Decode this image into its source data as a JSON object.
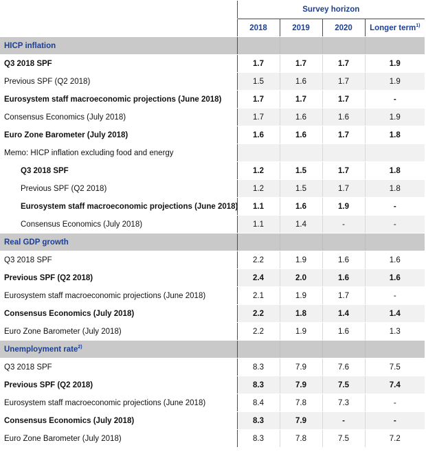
{
  "table": {
    "group_header": "Survey horizon",
    "columns": [
      {
        "label": "2018"
      },
      {
        "label": "2019"
      },
      {
        "label": "2020"
      },
      {
        "label": "Longer term",
        "note": "1)"
      }
    ],
    "sections": [
      {
        "title": "HICP inflation",
        "rows": [
          {
            "label": "Q3 2018 SPF",
            "values": [
              "1.7",
              "1.7",
              "1.7",
              "1.9"
            ],
            "bold": true
          },
          {
            "label": "Previous SPF (Q2 2018)",
            "values": [
              "1.5",
              "1.6",
              "1.7",
              "1.9"
            ]
          },
          {
            "label": "Eurosystem staff macroeconomic projections (June 2018)",
            "values": [
              "1.7",
              "1.7",
              "1.7",
              "-"
            ],
            "bold": true
          },
          {
            "label": "Consensus Economics (July 2018)",
            "values": [
              "1.7",
              "1.6",
              "1.6",
              "1.9"
            ]
          },
          {
            "label": "Euro Zone Barometer (July 2018)",
            "values": [
              "1.6",
              "1.6",
              "1.7",
              "1.8"
            ],
            "bold": true
          },
          {
            "label": "Memo: HICP inflation excluding food and energy",
            "values": []
          },
          {
            "label": "Q3 2018 SPF",
            "values": [
              "1.2",
              "1.5",
              "1.7",
              "1.8"
            ],
            "bold": true,
            "indent": true
          },
          {
            "label": "Previous SPF (Q2 2018)",
            "values": [
              "1.2",
              "1.5",
              "1.7",
              "1.8"
            ],
            "indent": true
          },
          {
            "label": "Eurosystem staff macroeconomic projections (June 2018)",
            "values": [
              "1.1",
              "1.6",
              "1.9",
              "-"
            ],
            "bold": true,
            "indent": true
          },
          {
            "label": "Consensus Economics (July 2018)",
            "values": [
              "1.1",
              "1.4",
              "-",
              "-"
            ],
            "indent": true
          }
        ]
      },
      {
        "title": "Real GDP growth",
        "rows": [
          {
            "label": "Q3 2018 SPF",
            "values": [
              "2.2",
              "1.9",
              "1.6",
              "1.6"
            ]
          },
          {
            "label": "Previous SPF (Q2 2018)",
            "values": [
              "2.4",
              "2.0",
              "1.6",
              "1.6"
            ],
            "bold": true
          },
          {
            "label": "Eurosystem staff macroeconomic projections (June 2018)",
            "values": [
              "2.1",
              "1.9",
              "1.7",
              "-"
            ]
          },
          {
            "label": "Consensus Economics (July 2018)",
            "values": [
              "2.2",
              "1.8",
              "1.4",
              "1.4"
            ],
            "bold": true
          },
          {
            "label": "Euro Zone Barometer (July 2018)",
            "values": [
              "2.2",
              "1.9",
              "1.6",
              "1.3"
            ]
          }
        ]
      },
      {
        "title": "Unemployment rate",
        "note": "2)",
        "rows": [
          {
            "label": "Q3 2018 SPF",
            "values": [
              "8.3",
              "7.9",
              "7.6",
              "7.5"
            ]
          },
          {
            "label": "Previous SPF (Q2 2018)",
            "values": [
              "8.3",
              "7.9",
              "7.5",
              "7.4"
            ],
            "bold": true
          },
          {
            "label": "Eurosystem staff macroeconomic projections (June 2018)",
            "values": [
              "8.4",
              "7.8",
              "7.3",
              "-"
            ]
          },
          {
            "label": "Consensus Economics (July 2018)",
            "values": [
              "8.3",
              "7.9",
              "-",
              "-"
            ],
            "bold": true
          },
          {
            "label": "Euro Zone Barometer (July 2018)",
            "values": [
              "8.3",
              "7.8",
              "7.5",
              "7.2"
            ]
          }
        ]
      }
    ]
  }
}
